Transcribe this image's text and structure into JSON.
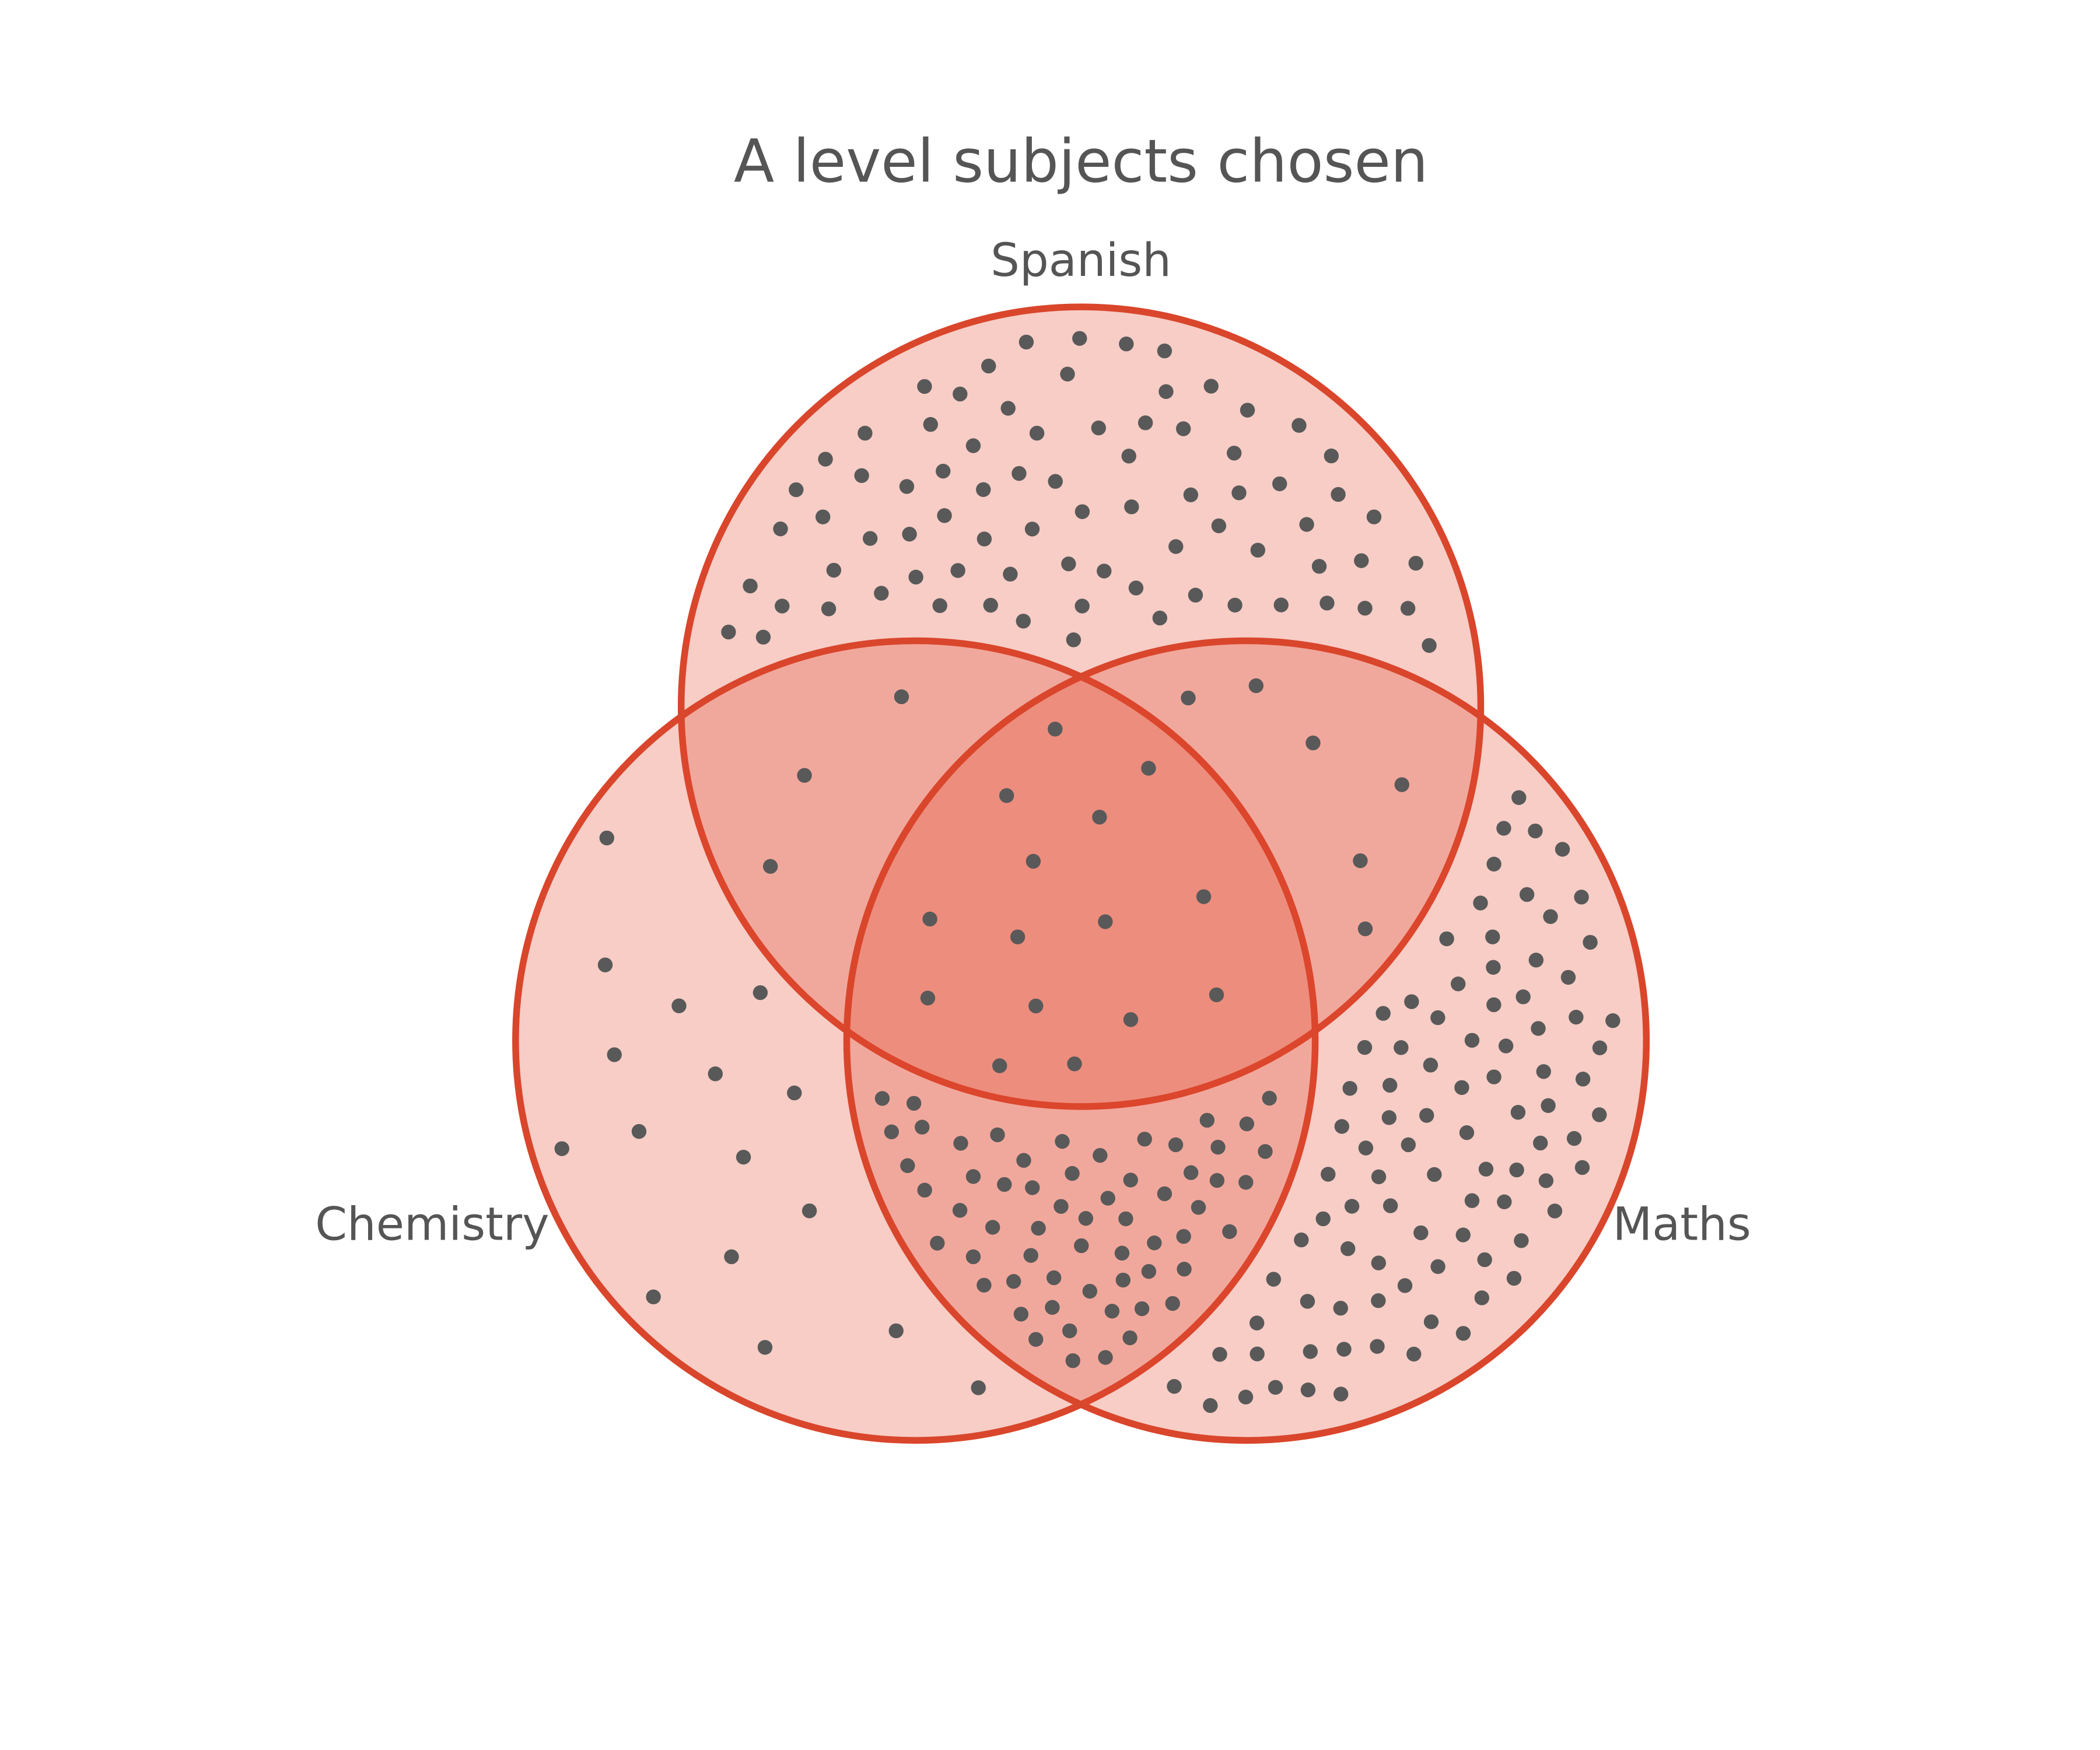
{
  "chart_data": {
    "type": "venn",
    "title": "A level subjects chosen",
    "sets": [
      {
        "name": "Spanish"
      },
      {
        "name": "Chemistry"
      },
      {
        "name": "Maths"
      }
    ],
    "regions": [
      {
        "sets": [
          "Spanish"
        ],
        "count": 78
      },
      {
        "sets": [
          "Chemistry"
        ],
        "count": 16
      },
      {
        "sets": [
          "Maths"
        ],
        "count": 90
      },
      {
        "sets": [
          "Spanish",
          "Chemistry"
        ],
        "count": 3
      },
      {
        "sets": [
          "Spanish",
          "Maths"
        ],
        "count": 6
      },
      {
        "sets": [
          "Chemistry",
          "Maths"
        ],
        "count": 60
      },
      {
        "sets": [
          "Spanish",
          "Chemistry",
          "Maths"
        ],
        "count": 15
      }
    ],
    "colors": {
      "fill": "#e0452c",
      "stroke": "#d9462c",
      "dot": "#595959",
      "text": "#555555"
    }
  }
}
